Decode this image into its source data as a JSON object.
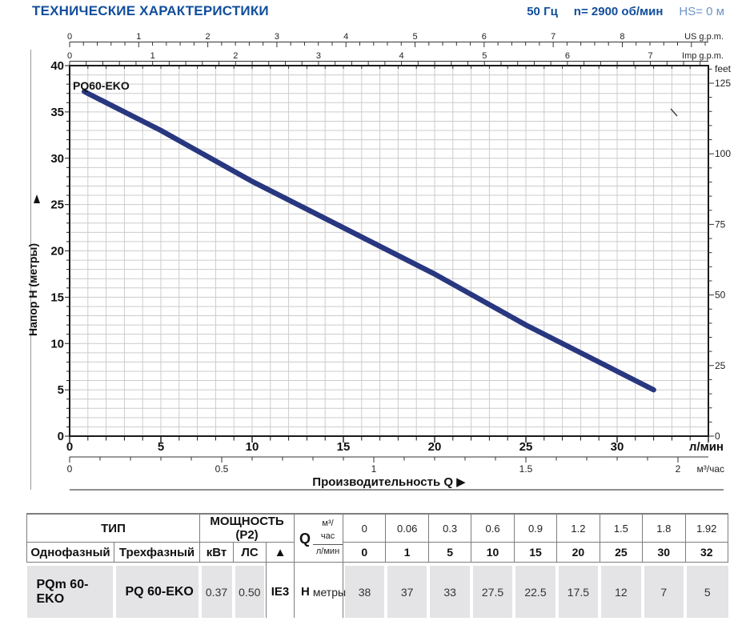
{
  "header": {
    "title": "ТЕХНИЧЕСКИЕ ХАРАКТЕРИСТИКИ",
    "frequency": "50 Гц",
    "speed": "n= 2900 об/мин",
    "suction": "HS= 0 м"
  },
  "colors": {
    "brand_blue": "#114e9b",
    "light_blue": "#6d94c5",
    "curve_navy": "#28377f",
    "grid_gray": "#cccccc",
    "frame_black": "#1a1a1a",
    "table_shade": "#e4e4e6",
    "table_border": "#7d7d7d"
  },
  "chart_data": {
    "type": "line",
    "title": "PQ60-EKO",
    "xlabel": "Производительность Q",
    "xlabel_arrow": "▶",
    "ylabel": "Напор  H (метры)",
    "xlim_lmin": [
      0,
      35
    ],
    "ylim_m": [
      0,
      40
    ],
    "grid": "on",
    "x_axes": [
      {
        "unit": "US g.p.m.",
        "position": "top1",
        "lmin_per_unit": 3.78541,
        "minor_step": 0.2,
        "ticks": [
          0,
          1,
          2,
          3,
          4,
          5,
          6,
          7,
          8
        ]
      },
      {
        "unit": "Imp g.p.m.",
        "position": "top2",
        "lmin_per_unit": 4.54609,
        "minor_step": 0.2,
        "ticks": [
          0,
          1,
          2,
          3,
          4,
          5,
          6,
          7
        ]
      },
      {
        "unit": "л/мин",
        "position": "bottom1",
        "lmin_per_unit": 1,
        "minor_step": 1,
        "ticks": [
          0,
          5,
          10,
          15,
          20,
          25,
          30
        ]
      },
      {
        "unit": "м³/час",
        "position": "bottom2",
        "lmin_per_unit": 16.6667,
        "minor_step": 0.1,
        "ticks": [
          0,
          0.5,
          1,
          1.5,
          2
        ]
      }
    ],
    "y_axes": [
      {
        "unit": "метры",
        "position": "left",
        "m_per_unit": 1,
        "minor_step": 1,
        "ticks": [
          0,
          5,
          10,
          15,
          20,
          25,
          30,
          35,
          40
        ]
      },
      {
        "unit": "feet",
        "position": "right",
        "m_per_unit": 0.3048,
        "minor_step": 5,
        "ticks": [
          25,
          50,
          75,
          100,
          125
        ],
        "zero_label": "0"
      }
    ],
    "series": [
      {
        "name": "PQ60-EKO",
        "points_lmin_m": [
          [
            0.8,
            37.2
          ],
          [
            1,
            37
          ],
          [
            5,
            33
          ],
          [
            10,
            27.5
          ],
          [
            15,
            22.5
          ],
          [
            20,
            17.5
          ],
          [
            25,
            12
          ],
          [
            30,
            7
          ],
          [
            32,
            5
          ]
        ]
      }
    ]
  },
  "table": {
    "type_header": "ТИП",
    "power_header": "МОЩНОСТЬ (P2)",
    "col_single": "Однофазный",
    "col_three": "Трехфазный",
    "col_kw": "кВт",
    "col_hp": "ЛС",
    "col_eff": "▲",
    "q_label": "Q",
    "q_unit_top": "м³/час",
    "q_unit_bottom": "л/мин",
    "h_label": "H",
    "h_unit": "метры",
    "row": {
      "single": "PQm 60-EKO",
      "three": "PQ 60-EKO",
      "kw": "0.37",
      "hp": "0.50",
      "eff": "IE3"
    },
    "q_m3h": [
      "0",
      "0.06",
      "0.3",
      "0.6",
      "0.9",
      "1.2",
      "1.5",
      "1.8",
      "1.92"
    ],
    "q_lmin": [
      "0",
      "1",
      "5",
      "10",
      "15",
      "20",
      "25",
      "30",
      "32"
    ],
    "h_m": [
      "38",
      "37",
      "33",
      "27.5",
      "22.5",
      "17.5",
      "12",
      "7",
      "5"
    ]
  }
}
